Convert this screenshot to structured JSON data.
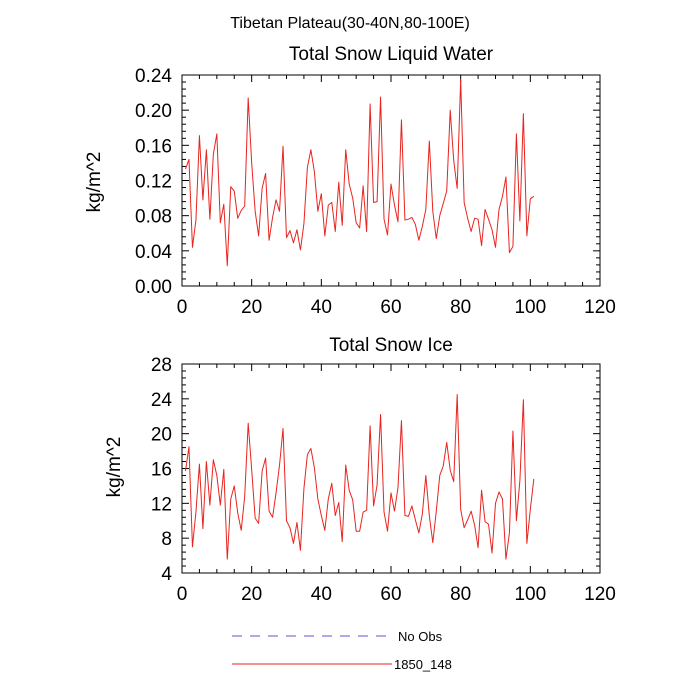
{
  "main_title": "Tibetan Plateau(30-40N,80-100E)",
  "legend": [
    {
      "label": "No Obs",
      "color": "#5a5ad8",
      "style": "dashed"
    },
    {
      "label": "1850_148",
      "color": "#e8241f",
      "style": "solid"
    }
  ],
  "chart_data": [
    {
      "type": "line",
      "title": "Total Snow Liquid Water",
      "xlabel": "",
      "ylabel": "kg/m^2",
      "xlim": [
        0,
        120
      ],
      "ylim": [
        0,
        0.24
      ],
      "xticks": [
        "0",
        "20",
        "40",
        "60",
        "80",
        "100",
        "120"
      ],
      "yticks": [
        "0.00",
        "0.04",
        "0.08",
        "0.12",
        "0.16",
        "0.20",
        "0.24"
      ],
      "grid": false,
      "series": [
        {
          "name": "1850_148",
          "color": "#e8241f",
          "x": [
            1,
            2,
            3,
            4,
            5,
            6,
            7,
            8,
            9,
            10,
            11,
            12,
            13,
            14,
            15,
            16,
            17,
            18,
            19,
            20,
            21,
            22,
            23,
            24,
            25,
            26,
            27,
            28,
            29,
            30,
            31,
            32,
            33,
            34,
            35,
            36,
            37,
            38,
            39,
            40,
            41,
            42,
            43,
            44,
            45,
            46,
            47,
            48,
            49,
            50,
            51,
            52,
            53,
            54,
            55,
            56,
            57,
            58,
            59,
            60,
            61,
            62,
            63,
            64,
            65,
            66,
            67,
            68,
            69,
            70,
            71,
            72,
            73,
            74,
            75,
            76,
            77,
            78,
            79,
            80,
            81,
            82,
            83,
            84,
            85,
            86,
            87,
            88,
            89,
            90,
            91,
            92,
            93,
            94,
            95,
            96,
            97,
            98,
            99,
            100,
            101
          ],
          "values": [
            0.133,
            0.144,
            0.044,
            0.075,
            0.171,
            0.098,
            0.155,
            0.076,
            0.15,
            0.173,
            0.072,
            0.093,
            0.023,
            0.113,
            0.108,
            0.077,
            0.086,
            0.091,
            0.214,
            0.14,
            0.085,
            0.057,
            0.111,
            0.128,
            0.052,
            0.078,
            0.098,
            0.085,
            0.159,
            0.055,
            0.063,
            0.049,
            0.064,
            0.041,
            0.071,
            0.135,
            0.155,
            0.13,
            0.085,
            0.105,
            0.057,
            0.092,
            0.095,
            0.062,
            0.118,
            0.069,
            0.155,
            0.116,
            0.1,
            0.072,
            0.066,
            0.114,
            0.062,
            0.207,
            0.095,
            0.096,
            0.215,
            0.076,
            0.058,
            0.116,
            0.092,
            0.073,
            0.189,
            0.075,
            0.076,
            0.078,
            0.07,
            0.052,
            0.068,
            0.087,
            0.165,
            0.085,
            0.054,
            0.08,
            0.094,
            0.108,
            0.2,
            0.143,
            0.111,
            0.235,
            0.095,
            0.077,
            0.062,
            0.077,
            0.076,
            0.046,
            0.087,
            0.076,
            0.064,
            0.044,
            0.087,
            0.102,
            0.124,
            0.038,
            0.045,
            0.173,
            0.074,
            0.196,
            0.057,
            0.099,
            0.102
          ]
        }
      ]
    },
    {
      "type": "line",
      "title": "Total Snow Ice",
      "xlabel": "",
      "ylabel": "kg/m^2",
      "xlim": [
        0,
        120
      ],
      "ylim": [
        4,
        28
      ],
      "xticks": [
        "0",
        "20",
        "40",
        "60",
        "80",
        "100",
        "120"
      ],
      "yticks": [
        "4",
        "8",
        "12",
        "16",
        "20",
        "24",
        "28"
      ],
      "grid": false,
      "series": [
        {
          "name": "1850_148",
          "color": "#e8241f",
          "x": [
            1,
            2,
            3,
            4,
            5,
            6,
            7,
            8,
            9,
            10,
            11,
            12,
            13,
            14,
            15,
            16,
            17,
            18,
            19,
            20,
            21,
            22,
            23,
            24,
            25,
            26,
            27,
            28,
            29,
            30,
            31,
            32,
            33,
            34,
            35,
            36,
            37,
            38,
            39,
            40,
            41,
            42,
            43,
            44,
            45,
            46,
            47,
            48,
            49,
            50,
            51,
            52,
            53,
            54,
            55,
            56,
            57,
            58,
            59,
            60,
            61,
            62,
            63,
            64,
            65,
            66,
            67,
            68,
            69,
            70,
            71,
            72,
            73,
            74,
            75,
            76,
            77,
            78,
            79,
            80,
            81,
            82,
            83,
            84,
            85,
            86,
            87,
            88,
            89,
            90,
            91,
            92,
            93,
            94,
            95,
            96,
            97,
            98,
            99,
            100,
            101
          ],
          "values": [
            15.7,
            18.5,
            7.0,
            11.0,
            16.5,
            9.1,
            16.8,
            11.8,
            17.0,
            15.2,
            11.8,
            15.9,
            5.6,
            12.5,
            14.0,
            10.9,
            8.9,
            12.8,
            21.2,
            15.9,
            10.3,
            9.7,
            15.7,
            17.2,
            11.1,
            10.4,
            13.2,
            16.4,
            20.6,
            10.0,
            9.2,
            7.4,
            9.8,
            6.6,
            13.7,
            17.6,
            18.3,
            16.1,
            12.5,
            10.6,
            8.9,
            12.5,
            14.3,
            10.6,
            12.1,
            7.6,
            16.4,
            13.5,
            12.4,
            8.8,
            8.8,
            11.0,
            11.2,
            20.9,
            11.7,
            14.1,
            22.2,
            11.0,
            8.8,
            13.2,
            11.1,
            13.8,
            21.5,
            10.6,
            10.5,
            11.7,
            10.1,
            8.6,
            10.8,
            15.2,
            10.6,
            7.5,
            11.1,
            15.2,
            16.3,
            19.0,
            15.8,
            14.5,
            24.5,
            11.3,
            9.2,
            10.1,
            11.1,
            9.5,
            6.9,
            13.5,
            9.9,
            9.6,
            6.3,
            12.0,
            13.3,
            12.5,
            5.6,
            8.6,
            20.3,
            10.0,
            14.6,
            23.9,
            7.4,
            11.3,
            14.8
          ]
        }
      ]
    }
  ]
}
